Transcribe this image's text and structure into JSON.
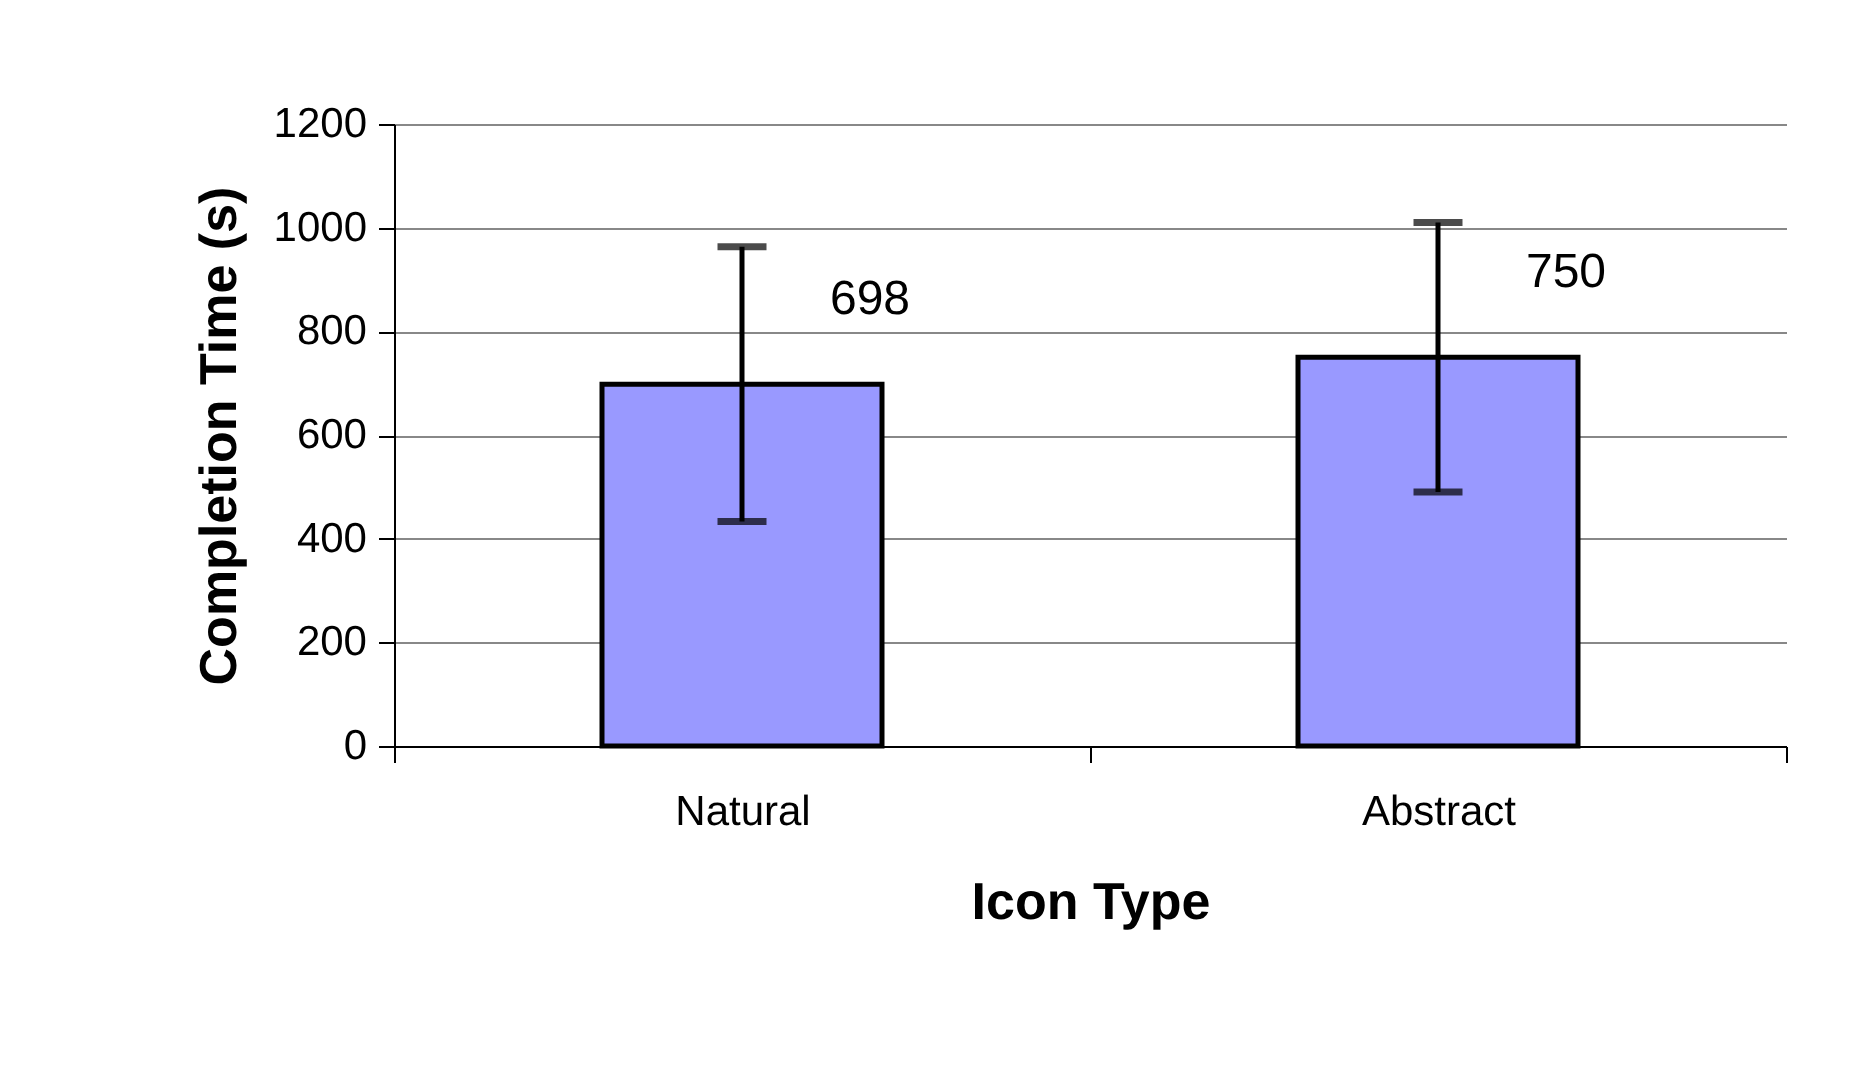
{
  "chart_data": {
    "type": "bar",
    "xlabel": "Icon Type",
    "ylabel": "Completion Time (s)",
    "categories": [
      "Natural",
      "Abstract"
    ],
    "values": [
      698,
      750
    ],
    "errors": [
      265,
      260
    ],
    "color": "#9999ff",
    "ylim": [
      0,
      1200
    ],
    "yticks": [
      0,
      200,
      400,
      600,
      800,
      1000,
      1200
    ],
    "grid": "y",
    "data_labels": true
  }
}
